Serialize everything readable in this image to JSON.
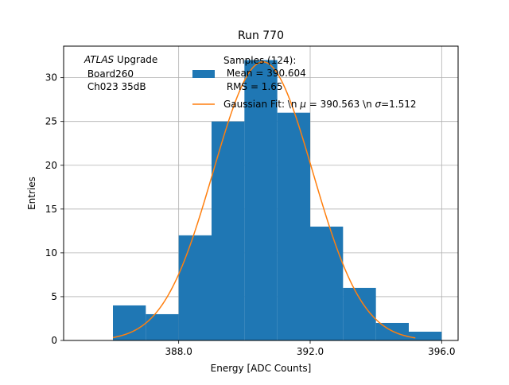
{
  "chart_data": {
    "type": "bar",
    "title": "Run 770",
    "xlabel": "Energy [ADC Counts]",
    "ylabel": "Entries",
    "xlim": [
      384.5,
      396.5
    ],
    "ylim": [
      0,
      33.6
    ],
    "grid": true,
    "x_ticks": [
      388.0,
      392.0,
      396.0
    ],
    "x_tick_labels": [
      "388.0",
      "392.0",
      "396.0"
    ],
    "y_ticks": [
      0,
      5,
      10,
      15,
      20,
      25,
      30
    ],
    "y_tick_labels": [
      "0",
      "5",
      "10",
      "15",
      "20",
      "25",
      "30"
    ],
    "histogram": {
      "name": "Samples (124):\n Mean = 390.604\n RMS = 1.65",
      "color": "#1f77b4",
      "bin_edges": [
        386,
        387,
        388,
        389,
        390,
        391,
        392,
        393,
        394,
        395,
        396
      ],
      "counts": [
        4,
        3,
        12,
        25,
        32,
        26,
        13,
        6,
        2,
        1
      ]
    },
    "fit": {
      "name": "Gaussian Fit: \\n $\\mu$ = 390.563 \\n $\\sigma$=1.512",
      "color": "#ff7f0e",
      "mu": 390.563,
      "sigma": 1.512,
      "amplitude": 31.8,
      "x_range": [
        386.0,
        395.2
      ]
    },
    "legend_placement": "top-right",
    "legend": {
      "histogram_lines": [
        "Samples (124):",
        " Mean = 390.604",
        " RMS = 1.65"
      ],
      "fit_label_parts": [
        "Gaussian Fit: \\n ",
        "μ",
        " = 390.563 \\n ",
        "σ",
        "=1.512"
      ]
    },
    "annotation": {
      "italic": "ATLAS",
      "rest": " Upgrade",
      "line2": " Board260",
      "line3": " Ch023 35dB"
    }
  }
}
